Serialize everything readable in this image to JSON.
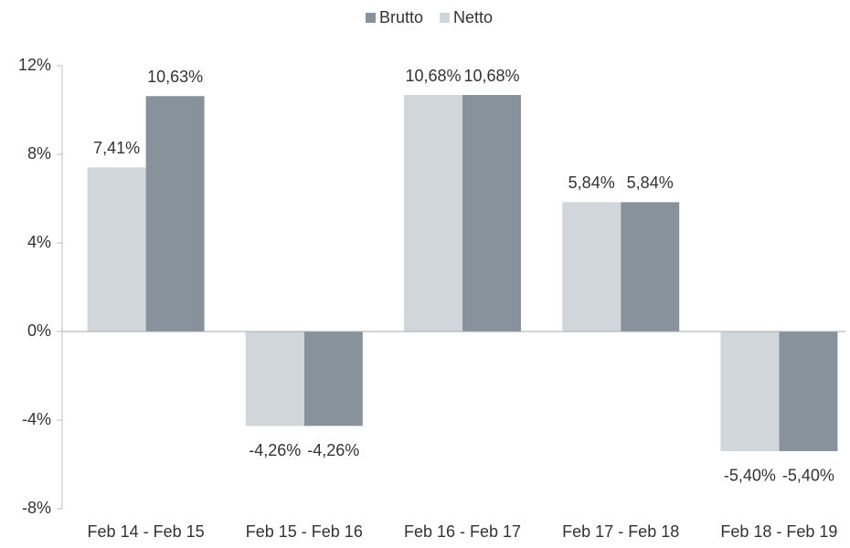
{
  "chart_data": {
    "type": "bar",
    "categories": [
      "Feb 14 - Feb 15",
      "Feb 15 - Feb 16",
      "Feb 16 - Feb 17",
      "Feb 17 - Feb 18",
      "Feb 18 - Feb 19"
    ],
    "series": [
      {
        "name": "Brutto",
        "color": "#87929c",
        "values": [
          10.63,
          -4.26,
          10.68,
          5.84,
          -5.4
        ],
        "value_labels": [
          "10,63%",
          "-4,26%",
          "10,68%",
          "5,84%",
          "-5,40%"
        ]
      },
      {
        "name": "Netto",
        "color": "#d1d6db",
        "values": [
          7.41,
          -4.26,
          10.68,
          5.84,
          -5.4
        ],
        "value_labels": [
          "7,41%",
          "-4,26%",
          "10,68%",
          "5,84%",
          "-5,40%"
        ]
      }
    ],
    "ylim": [
      -8,
      12
    ],
    "yticks": [
      {
        "value": -8,
        "label": "-8%"
      },
      {
        "value": -4,
        "label": "-4%"
      },
      {
        "value": 0,
        "label": "0%"
      },
      {
        "value": 4,
        "label": "4%"
      },
      {
        "value": 8,
        "label": "8%"
      },
      {
        "value": 12,
        "label": "12%"
      }
    ],
    "grid": false,
    "legend": "top"
  }
}
